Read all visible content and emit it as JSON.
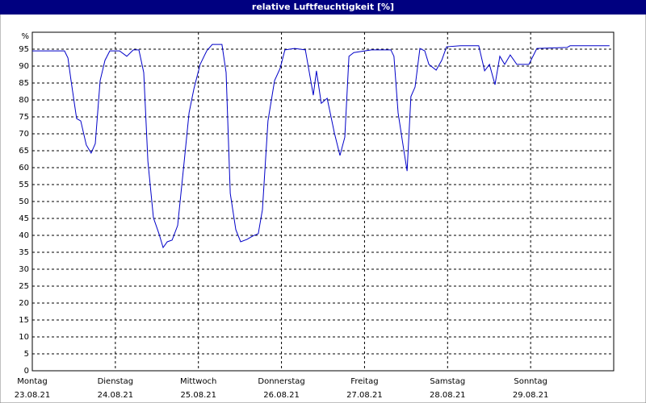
{
  "chart_data": {
    "type": "line",
    "title": "relative Luftfeuchtigkeit [%]",
    "y_unit": "%",
    "xlim": [
      0,
      168
    ],
    "ylim": [
      0,
      100
    ],
    "yticks": [
      0,
      5,
      10,
      15,
      20,
      25,
      30,
      35,
      40,
      45,
      50,
      55,
      60,
      65,
      70,
      75,
      80,
      85,
      90,
      95
    ],
    "xticks": [
      {
        "value": 0,
        "label": "Montag"
      },
      {
        "value": 24,
        "label": "Dienstag"
      },
      {
        "value": 48,
        "label": "Mittwoch"
      },
      {
        "value": 72,
        "label": "Donnerstag"
      },
      {
        "value": 96,
        "label": "Freitag"
      },
      {
        "value": 120,
        "label": "Samstag"
      },
      {
        "value": 144,
        "label": "Sonntag"
      }
    ],
    "xtick_dates": [
      "23.08.21",
      "24.08.21",
      "25.08.21",
      "26.08.21",
      "27.08.21",
      "28.08.21",
      "29.08.21"
    ],
    "grid": true,
    "color": "#0000c8",
    "series": [
      {
        "name": "relative Luftfeuchtigkeit",
        "color": "#0000c8",
        "x": [
          0,
          9.3,
          10.3,
          11.2,
          12.8,
          14,
          15.6,
          17,
          18.2,
          19.6,
          21,
          22.4,
          25.2,
          27.3,
          29.2,
          30.8,
          32.2,
          33.4,
          35,
          36.6,
          37.8,
          39,
          40.4,
          42,
          43.9,
          45.3,
          46.7,
          48.5,
          50.4,
          52,
          54.8,
          56,
          57.2,
          58.8,
          60.2,
          62,
          63.7,
          65.3,
          66.5,
          68.1,
          70,
          71.6,
          73,
          75.8,
          78.9,
          81.2,
          82.1,
          83.5,
          85.2,
          87.3,
          88.9,
          90.3,
          91.5,
          92.9,
          96.1,
          98,
          103.6,
          104.5,
          105.7,
          107.3,
          108.3,
          109.4,
          110.6,
          112,
          113.4,
          114.6,
          116.7,
          118.3,
          119.7,
          123.7,
          129,
          130.7,
          132.1,
          133.7,
          135.1,
          136.5,
          138.1,
          140,
          143.5,
          145.8,
          154.5,
          155.4,
          166.8
        ],
        "values": [
          94.5,
          94.5,
          92.4,
          85.7,
          74.5,
          73.8,
          66.7,
          64.3,
          67.1,
          85.7,
          91.7,
          94.5,
          94.5,
          92.9,
          94.8,
          94.8,
          88.1,
          61.9,
          45.2,
          40.5,
          36.4,
          38.1,
          38.6,
          42.9,
          61.9,
          76.2,
          83.3,
          90.5,
          94.5,
          96.4,
          96.4,
          88.1,
          52.4,
          41.7,
          38.1,
          38.8,
          39.8,
          40.5,
          47.6,
          73.8,
          85.7,
          89.3,
          94.8,
          95.2,
          94.8,
          81.4,
          88.6,
          79,
          80.5,
          70.2,
          63.6,
          69,
          92.9,
          94,
          94.5,
          94.8,
          94.8,
          92.9,
          76.2,
          65.5,
          59,
          81,
          83.8,
          95.2,
          94.5,
          90.5,
          88.8,
          91.7,
          95.7,
          96,
          96,
          88.6,
          90.5,
          84.5,
          92.9,
          90.5,
          93.3,
          90.5,
          90.5,
          95.2,
          95.5,
          96,
          96
        ]
      }
    ]
  }
}
